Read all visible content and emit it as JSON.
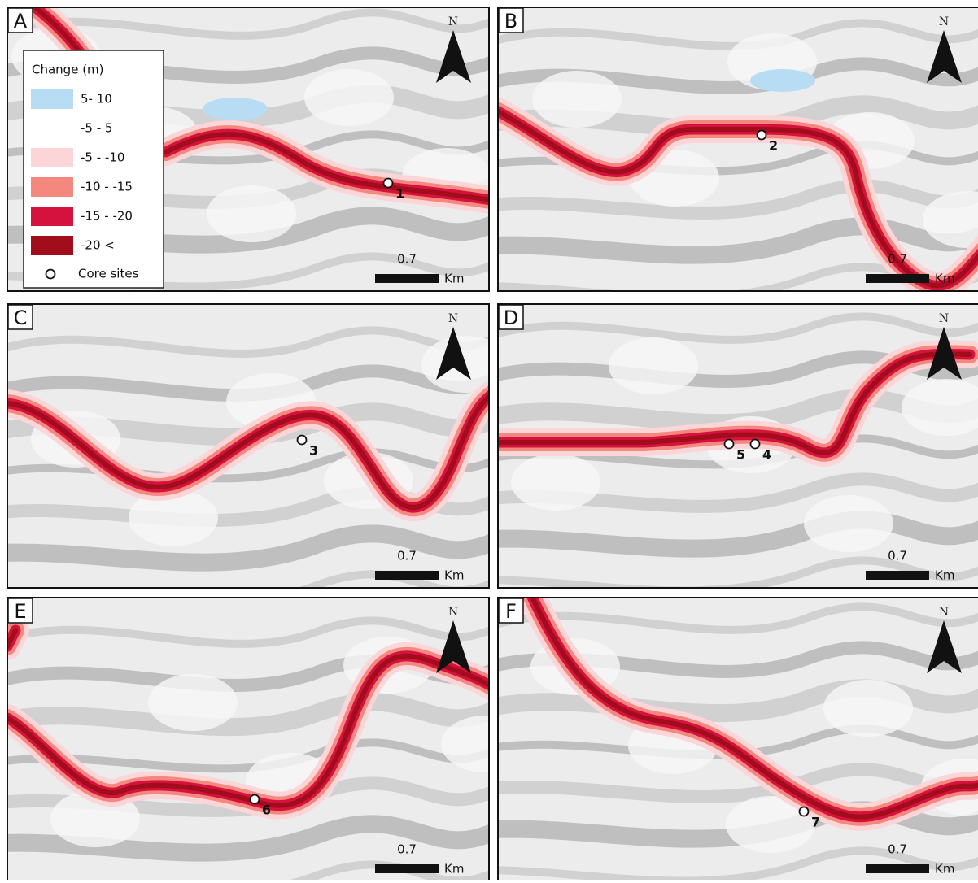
{
  "legend": {
    "title": "Change (m)",
    "items": [
      {
        "label": "5- 10",
        "color": "#b7dcf4"
      },
      {
        "label": "-5 - 5",
        "color": "#ffffff"
      },
      {
        "label": "-5 - -10",
        "color": "#fcd5d8"
      },
      {
        "label": "-10 - -15",
        "color": "#f4877e"
      },
      {
        "label": "-15 - -20",
        "color": "#d5113e"
      },
      {
        "label": "-20 <",
        "color": "#a20d1c"
      }
    ],
    "core_sites": "Core sites"
  },
  "panels": [
    {
      "letter": "A",
      "north": "N",
      "scale": "0.7",
      "unit": "Km",
      "sites": [
        "1"
      ]
    },
    {
      "letter": "B",
      "north": "N",
      "scale": "0.7",
      "unit": "Km",
      "sites": [
        "2"
      ]
    },
    {
      "letter": "C",
      "north": "N",
      "scale": "0.7",
      "unit": "Km",
      "sites": [
        "3"
      ]
    },
    {
      "letter": "D",
      "north": "N",
      "scale": "0.7",
      "unit": "Km",
      "sites": [
        "5",
        "4"
      ]
    },
    {
      "letter": "E",
      "north": "N",
      "scale": "0.7",
      "unit": "Km",
      "sites": [
        "6"
      ]
    },
    {
      "letter": "F",
      "north": "N",
      "scale": "0.7",
      "unit": "Km",
      "sites": [
        "7"
      ]
    }
  ]
}
